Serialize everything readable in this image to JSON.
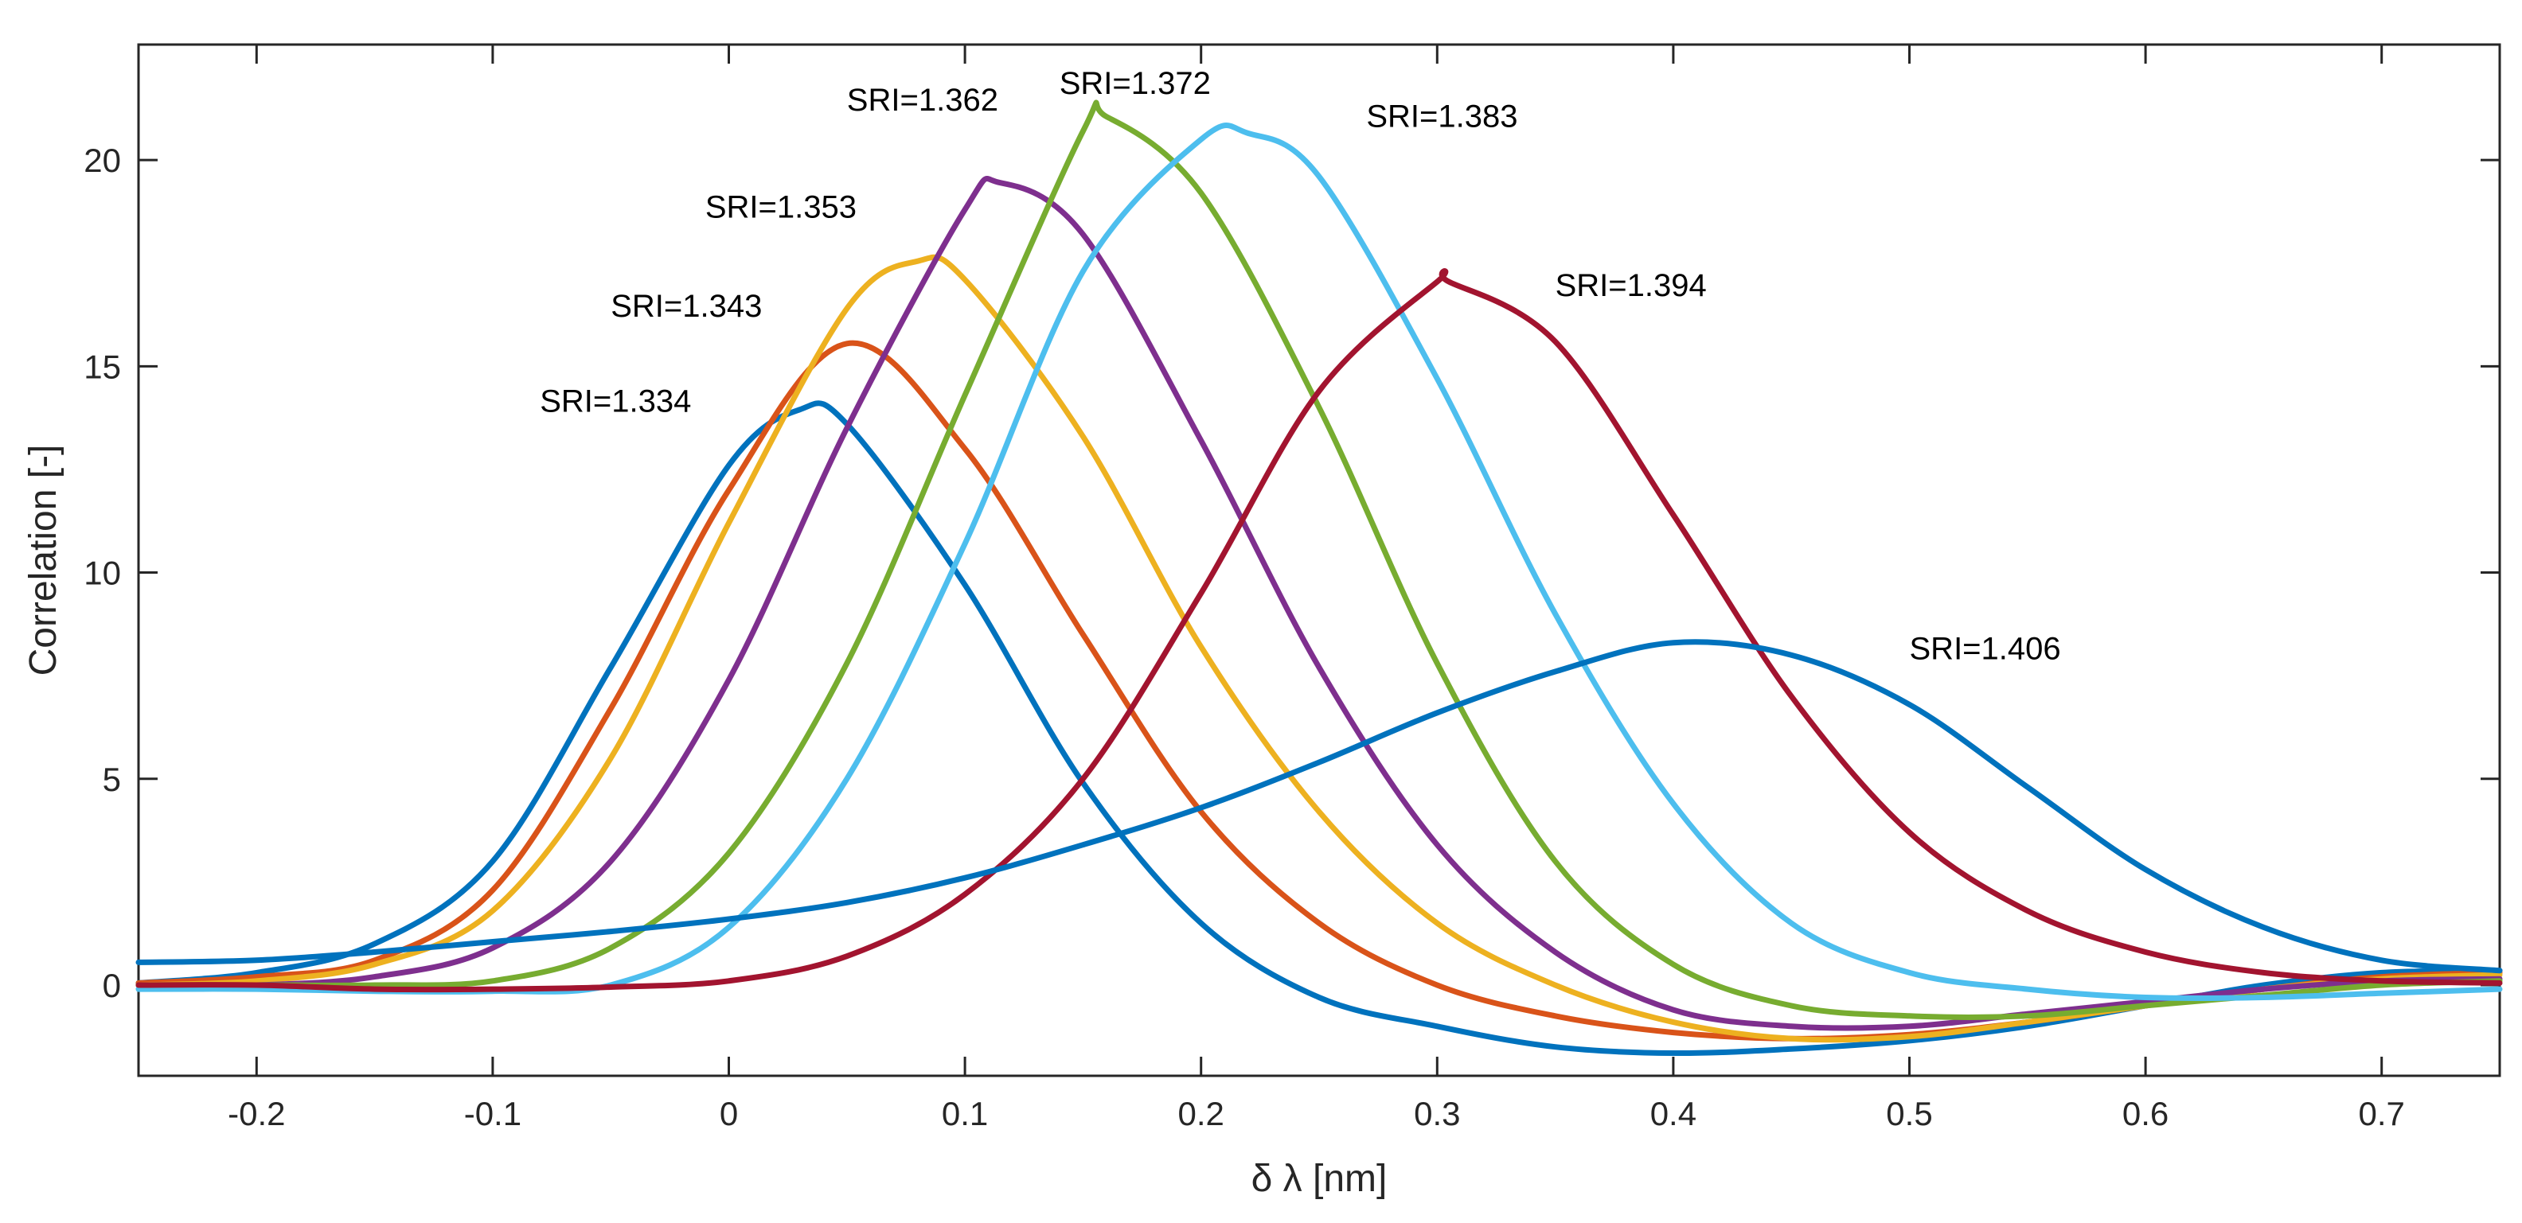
{
  "chart_data": {
    "type": "line",
    "title": "",
    "xlabel": "δ λ [nm]",
    "ylabel": "Correlation [-]",
    "xlim": [
      -0.25,
      0.75
    ],
    "ylim": [
      -2.2,
      22.8
    ],
    "xticks": [
      -0.2,
      -0.1,
      0,
      0.1,
      0.2,
      0.3,
      0.4,
      0.5,
      0.6,
      0.7
    ],
    "xtick_labels": [
      "-0.2",
      "-0.1",
      "0",
      "0.1",
      "0.2",
      "0.3",
      "0.4",
      "0.5",
      "0.6",
      "0.7"
    ],
    "yticks": [
      0,
      5,
      10,
      15,
      20
    ],
    "ytick_labels": [
      "0",
      "5",
      "10",
      "15",
      "20"
    ],
    "grid": false,
    "legend": "none",
    "series": [
      {
        "name": "SRI=1.334",
        "color": "#0072BD",
        "x": [
          -0.25,
          -0.2,
          -0.15,
          -0.1,
          -0.05,
          0,
          0.03,
          0.05,
          0.1,
          0.15,
          0.2,
          0.25,
          0.3,
          0.35,
          0.4,
          0.45,
          0.5,
          0.55,
          0.6,
          0.65,
          0.7,
          0.75
        ],
        "y": [
          0.05,
          0.3,
          1.0,
          3.0,
          7.7,
          12.6,
          13.95,
          13.6,
          9.7,
          4.9,
          1.5,
          -0.3,
          -1.0,
          -1.5,
          -1.65,
          -1.55,
          -1.35,
          -1.0,
          -0.5,
          0.0,
          0.3,
          0.35
        ]
      },
      {
        "name": "SRI=1.343",
        "color": "#D95319",
        "x": [
          -0.25,
          -0.2,
          -0.15,
          -0.1,
          -0.05,
          0,
          0.05,
          0.1,
          0.15,
          0.2,
          0.25,
          0.3,
          0.35,
          0.4,
          0.45,
          0.5,
          0.55,
          0.6,
          0.65,
          0.7,
          0.75
        ],
        "y": [
          0.05,
          0.2,
          0.6,
          2.3,
          6.7,
          12.0,
          15.55,
          13.0,
          8.5,
          4.2,
          1.5,
          0.0,
          -0.75,
          -1.15,
          -1.3,
          -1.2,
          -0.9,
          -0.5,
          -0.1,
          0.2,
          0.3
        ]
      },
      {
        "name": "SRI=1.353",
        "color": "#EDB120",
        "x": [
          -0.25,
          -0.2,
          -0.15,
          -0.1,
          -0.05,
          0,
          0.05,
          0.08,
          0.1,
          0.15,
          0.2,
          0.25,
          0.3,
          0.35,
          0.4,
          0.45,
          0.5,
          0.55,
          0.6,
          0.65,
          0.7,
          0.75
        ],
        "y": [
          0.0,
          0.1,
          0.5,
          1.8,
          5.5,
          11.2,
          16.4,
          17.55,
          17.1,
          13.3,
          8.2,
          4.2,
          1.5,
          0.0,
          -0.9,
          -1.3,
          -1.25,
          -0.9,
          -0.5,
          -0.1,
          0.15,
          0.25
        ]
      },
      {
        "name": "SRI=1.362",
        "color": "#7E2F8E",
        "x": [
          -0.25,
          -0.2,
          -0.15,
          -0.1,
          -0.05,
          0,
          0.05,
          0.1,
          0.115,
          0.15,
          0.2,
          0.25,
          0.3,
          0.35,
          0.4,
          0.45,
          0.5,
          0.55,
          0.6,
          0.65,
          0.7,
          0.75
        ],
        "y": [
          0.0,
          0.0,
          0.2,
          0.9,
          3.0,
          7.4,
          13.5,
          18.8,
          19.45,
          18.2,
          13.2,
          7.7,
          3.4,
          0.8,
          -0.6,
          -1.0,
          -1.0,
          -0.7,
          -0.4,
          -0.1,
          0.1,
          0.15
        ]
      },
      {
        "name": "SRI=1.372",
        "color": "#77AC30",
        "x": [
          -0.25,
          -0.2,
          -0.15,
          -0.1,
          -0.05,
          0,
          0.05,
          0.1,
          0.15,
          0.16,
          0.2,
          0.25,
          0.3,
          0.35,
          0.4,
          0.45,
          0.5,
          0.55,
          0.6,
          0.65,
          0.7,
          0.75
        ],
        "y": [
          0.0,
          0.0,
          0.0,
          0.1,
          0.9,
          3.2,
          7.8,
          14.3,
          20.7,
          21.05,
          19.2,
          14.0,
          7.8,
          3.0,
          0.5,
          -0.5,
          -0.75,
          -0.75,
          -0.5,
          -0.25,
          0.0,
          0.1
        ]
      },
      {
        "name": "SRI=1.383",
        "color": "#4DBEEE",
        "x": [
          -0.25,
          -0.2,
          -0.15,
          -0.1,
          -0.05,
          0,
          0.05,
          0.1,
          0.15,
          0.2,
          0.22,
          0.25,
          0.3,
          0.35,
          0.4,
          0.45,
          0.5,
          0.55,
          0.6,
          0.65,
          0.7,
          0.75
        ],
        "y": [
          -0.1,
          -0.1,
          -0.15,
          -0.15,
          0.0,
          1.4,
          5.0,
          10.7,
          17.3,
          20.5,
          20.65,
          19.6,
          14.7,
          9.0,
          4.4,
          1.5,
          0.3,
          -0.1,
          -0.3,
          -0.3,
          -0.2,
          -0.1
        ]
      },
      {
        "name": "SRI=1.394",
        "color": "#A2142F",
        "x": [
          -0.25,
          -0.2,
          -0.15,
          -0.1,
          -0.05,
          0,
          0.05,
          0.1,
          0.15,
          0.2,
          0.25,
          0.3,
          0.305,
          0.35,
          0.4,
          0.45,
          0.5,
          0.55,
          0.6,
          0.65,
          0.7,
          0.75
        ],
        "y": [
          0.0,
          0.0,
          -0.1,
          -0.1,
          -0.05,
          0.1,
          0.7,
          2.2,
          5.0,
          9.5,
          14.4,
          17.05,
          17.05,
          15.6,
          11.4,
          7.0,
          3.7,
          1.8,
          0.8,
          0.3,
          0.1,
          0.05
        ]
      },
      {
        "name": "SRI=1.406",
        "color": "#0072BD",
        "x": [
          -0.25,
          -0.2,
          -0.15,
          -0.1,
          -0.05,
          0,
          0.05,
          0.1,
          0.15,
          0.2,
          0.25,
          0.3,
          0.35,
          0.4,
          0.45,
          0.5,
          0.55,
          0.6,
          0.65,
          0.7,
          0.75
        ],
        "y": [
          0.55,
          0.6,
          0.8,
          1.05,
          1.3,
          1.6,
          2.0,
          2.6,
          3.4,
          4.3,
          5.4,
          6.6,
          7.6,
          8.3,
          8.0,
          6.8,
          4.8,
          2.8,
          1.4,
          0.6,
          0.35
        ]
      }
    ],
    "annotations": [
      {
        "text": "SRI=1.334",
        "x": -0.08,
        "y": 13.9
      },
      {
        "text": "SRI=1.343",
        "x": -0.05,
        "y": 16.2
      },
      {
        "text": "SRI=1.353",
        "x": -0.01,
        "y": 18.6
      },
      {
        "text": "SRI=1.362",
        "x": 0.05,
        "y": 21.2
      },
      {
        "text": "SRI=1.372",
        "x": 0.14,
        "y": 21.6
      },
      {
        "text": "SRI=1.383",
        "x": 0.27,
        "y": 20.8
      },
      {
        "text": "SRI=1.394",
        "x": 0.35,
        "y": 16.7
      },
      {
        "text": "SRI=1.406",
        "x": 0.5,
        "y": 7.9
      }
    ]
  }
}
